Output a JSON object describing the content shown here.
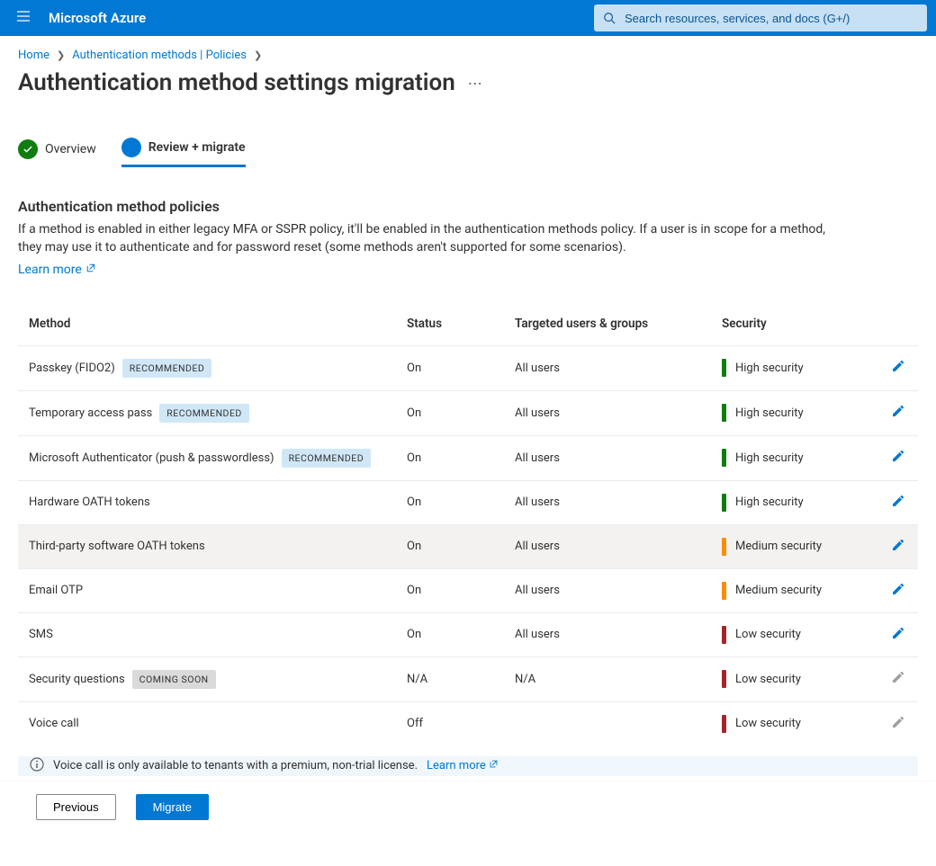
{
  "colors": {
    "brand": "#0078d4",
    "searchBg": "#c7e0f4",
    "high": "#107c10",
    "medium": "#ff8c00",
    "low": "#a4262c",
    "rowHover": "#f3f2f1",
    "border": "#edebe9",
    "recBadgeBg": "#d0e7f8",
    "soonBadgeBg": "#dadada",
    "infoBg": "#eff6fc",
    "disabled": "#a19f9d"
  },
  "header": {
    "brand": "Microsoft Azure",
    "searchPlaceholder": "Search resources, services, and docs (G+/)"
  },
  "breadcrumb": {
    "home": "Home",
    "policies": "Authentication methods | Policies"
  },
  "page": {
    "title": "Authentication method settings migration",
    "moreLabel": "⋯"
  },
  "tabs": {
    "overview": "Overview",
    "review": "Review + migrate"
  },
  "section": {
    "title": "Authentication method policies",
    "desc": "If a method is enabled in either legacy MFA or SSPR policy, it'll be enabled in the authentication methods policy. If a user is in scope for a method, they may use it to authenticate and for password reset (some methods aren't supported for some scenarios).",
    "learnMore": "Learn more"
  },
  "table": {
    "headers": {
      "method": "Method",
      "status": "Status",
      "targeted": "Targeted users & groups",
      "security": "Security"
    },
    "badges": {
      "recommended": "RECOMMENDED",
      "comingSoon": "COMING SOON"
    },
    "securityLabels": {
      "high": "High security",
      "medium": "Medium security",
      "low": "Low security"
    },
    "rows": [
      {
        "method": "Passkey (FIDO2)",
        "badge": "recommended",
        "status": "On",
        "targeted": "All users",
        "security": "high",
        "editable": true,
        "highlight": false
      },
      {
        "method": "Temporary access pass",
        "badge": "recommended",
        "status": "On",
        "targeted": "All users",
        "security": "high",
        "editable": true,
        "highlight": false
      },
      {
        "method": "Microsoft Authenticator (push & passwordless)",
        "badge": "recommended",
        "status": "On",
        "targeted": "All users",
        "security": "high",
        "editable": true,
        "highlight": false
      },
      {
        "method": "Hardware OATH tokens",
        "badge": null,
        "status": "On",
        "targeted": "All users",
        "security": "high",
        "editable": true,
        "highlight": false
      },
      {
        "method": "Third-party software OATH tokens",
        "badge": null,
        "status": "On",
        "targeted": "All users",
        "security": "medium",
        "editable": true,
        "highlight": true
      },
      {
        "method": "Email OTP",
        "badge": null,
        "status": "On",
        "targeted": "All users",
        "security": "medium",
        "editable": true,
        "highlight": false
      },
      {
        "method": "SMS",
        "badge": null,
        "status": "On",
        "targeted": "All users",
        "security": "low",
        "editable": true,
        "highlight": false
      },
      {
        "method": "Security questions",
        "badge": "comingSoon",
        "status": "N/A",
        "targeted": "N/A",
        "security": "low",
        "editable": false,
        "highlight": false
      },
      {
        "method": "Voice call",
        "badge": null,
        "status": "Off",
        "targeted": "",
        "security": "low",
        "editable": false,
        "highlight": false
      }
    ]
  },
  "info": {
    "text": "Voice call is only available to tenants with a premium, non-trial license.",
    "link": "Learn more"
  },
  "footer": {
    "previous": "Previous",
    "migrate": "Migrate"
  }
}
